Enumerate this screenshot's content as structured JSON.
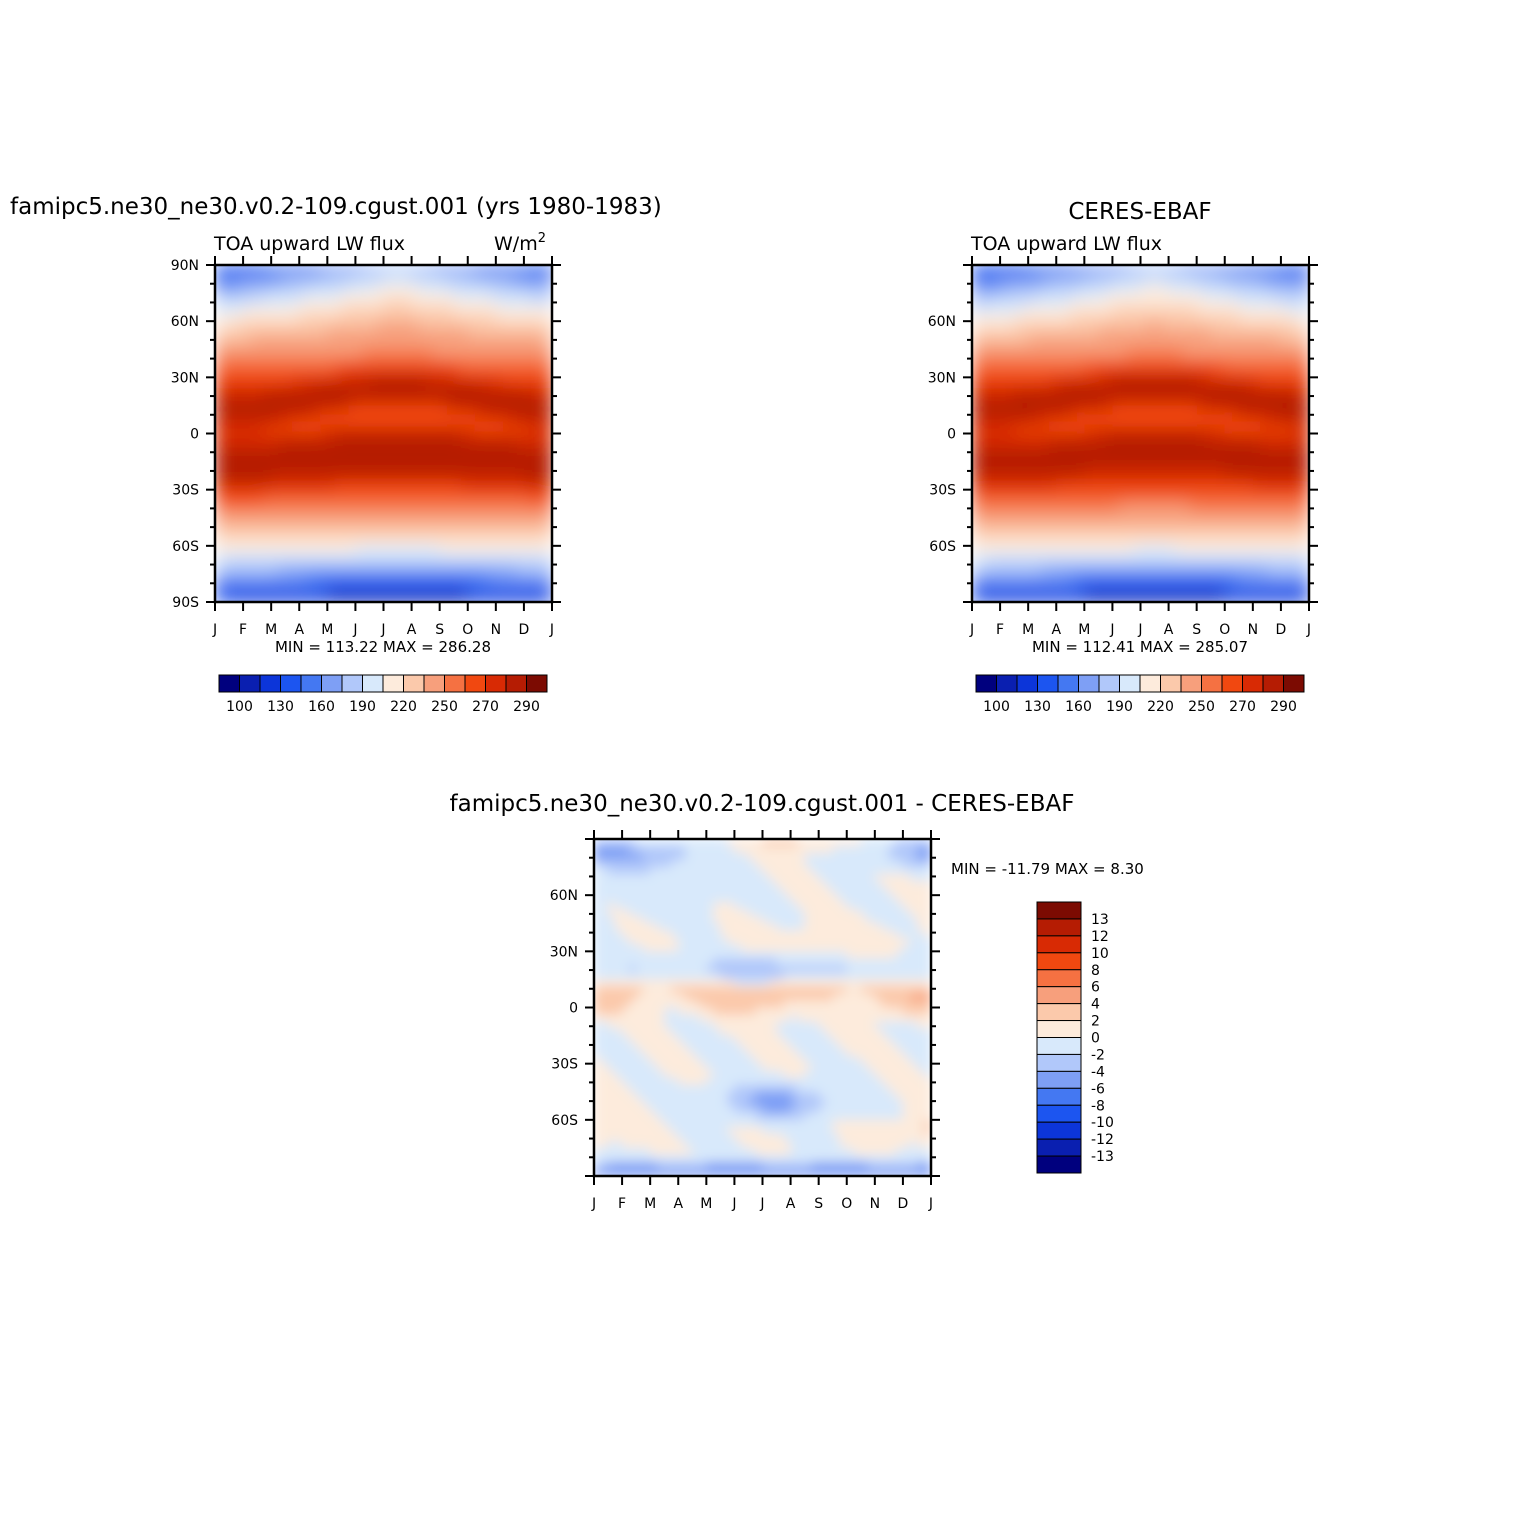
{
  "palette": {
    "abs": [
      "#00007e",
      "#0a1fb0",
      "#0c35d9",
      "#1c55f0",
      "#4478f2",
      "#7e9ff5",
      "#b1c8fa",
      "#d8e9fb",
      "#fdebdc",
      "#fbc9ab",
      "#f79f7c",
      "#f57142",
      "#f14810",
      "#d82a04",
      "#b51c03",
      "#7c0b02"
    ],
    "diff": [
      "#00007e",
      "#0a1fb0",
      "#0c35d9",
      "#1c55f0",
      "#4478f2",
      "#7e9ff5",
      "#b1c8fa",
      "#d8e9fb",
      "#fdebdc",
      "#fbc9ab",
      "#f79f7c",
      "#f57142",
      "#f14810",
      "#d82a04",
      "#b51c03",
      "#7c0b02"
    ]
  },
  "chart_data": [
    {
      "type": "heatmap",
      "panel": "model",
      "title": "famipc5.ne30_ne30.v0.2-109.cgust.001 (yrs 1980-1983)",
      "variable": "TOA upward LW flux",
      "units": "W/m",
      "units_sup": "2",
      "x_tick_labels": [
        "J",
        "F",
        "M",
        "A",
        "M",
        "J",
        "J",
        "A",
        "S",
        "O",
        "N",
        "D",
        "J"
      ],
      "y_tick_labels": [
        "90N",
        "60N",
        "30N",
        "0",
        "30S",
        "60S",
        "90S"
      ],
      "y_tick_values": [
        90,
        60,
        30,
        0,
        -30,
        -60,
        -90
      ],
      "ylim": [
        -90,
        90
      ],
      "stats": "MIN = 113.22 MAX = 286.28",
      "min": 113.22,
      "max": 286.28,
      "levels": [
        100,
        110,
        120,
        130,
        140,
        150,
        160,
        170,
        180,
        190,
        200,
        210,
        220,
        230,
        240,
        250,
        260,
        270,
        280,
        290
      ],
      "colorbar_labels": [
        "100",
        "130",
        "160",
        "190",
        "220",
        "250",
        "270",
        "290"
      ],
      "color_boundaries": [
        100,
        115,
        130,
        145,
        160,
        175,
        190,
        205,
        220,
        235,
        250,
        260,
        270,
        280,
        290
      ]
    },
    {
      "type": "heatmap",
      "panel": "observations",
      "title": "CERES-EBAF",
      "variable": "TOA upward LW flux",
      "x_tick_labels": [
        "J",
        "F",
        "M",
        "A",
        "M",
        "J",
        "J",
        "A",
        "S",
        "O",
        "N",
        "D",
        "J"
      ],
      "y_tick_labels": [
        "60N",
        "30N",
        "0",
        "30S",
        "60S"
      ],
      "y_tick_values": [
        60,
        30,
        0,
        -30,
        -60
      ],
      "ylim": [
        -90,
        90
      ],
      "stats": "MIN = 112.41 MAX = 285.07",
      "min": 112.41,
      "max": 285.07,
      "colorbar_labels": [
        "100",
        "130",
        "160",
        "190",
        "220",
        "250",
        "270",
        "290"
      ],
      "color_boundaries": [
        100,
        115,
        130,
        145,
        160,
        175,
        190,
        205,
        220,
        235,
        250,
        260,
        270,
        280,
        290
      ]
    },
    {
      "type": "heatmap",
      "panel": "difference",
      "title": "famipc5.ne30_ne30.v0.2-109.cgust.001 - CERES-EBAF",
      "x_tick_labels": [
        "J",
        "F",
        "M",
        "A",
        "M",
        "J",
        "J",
        "A",
        "S",
        "O",
        "N",
        "D",
        "J"
      ],
      "y_tick_labels": [
        "60N",
        "30N",
        "0",
        "30S",
        "60S"
      ],
      "y_tick_values": [
        60,
        30,
        0,
        -30,
        -60
      ],
      "ylim": [
        -90,
        90
      ],
      "stats": "MIN = -11.79 MAX =    8.30",
      "min": -11.79,
      "max": 8.3,
      "colorbar_labels": [
        "13",
        "12",
        "10",
        "8",
        "6",
        "4",
        "2",
        "0",
        "-2",
        "-4",
        "-6",
        "-8",
        "-10",
        "-12",
        "-13"
      ],
      "color_boundaries": [
        -13,
        -12,
        -10,
        -8,
        -6,
        -4,
        -2,
        0,
        2,
        4,
        6,
        8,
        10,
        12,
        13
      ]
    }
  ]
}
